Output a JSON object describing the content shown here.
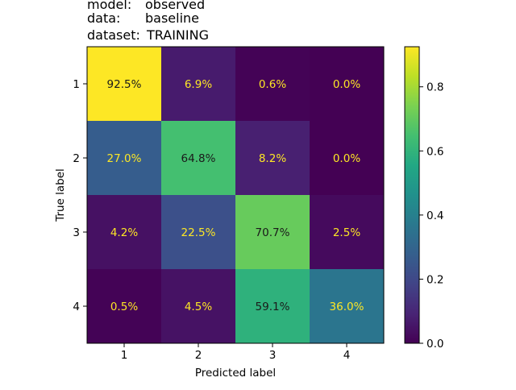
{
  "chart_data": {
    "type": "heatmap",
    "title_lines": [
      {
        "key": "model:",
        "value": "observed"
      },
      {
        "key": "data:",
        "value": "baseline"
      },
      {
        "key": "dataset:",
        "value": "TRAINING"
      }
    ],
    "xlabel": "Predicted label",
    "ylabel": "True label",
    "x_categories": [
      "1",
      "2",
      "3",
      "4"
    ],
    "y_categories": [
      "1",
      "2",
      "3",
      "4"
    ],
    "values": [
      [
        0.925,
        0.069,
        0.006,
        0.0
      ],
      [
        0.27,
        0.648,
        0.082,
        0.0
      ],
      [
        0.042,
        0.225,
        0.707,
        0.025
      ],
      [
        0.005,
        0.045,
        0.591,
        0.36
      ]
    ],
    "cell_labels": [
      [
        "92.5%",
        "6.9%",
        "0.6%",
        "0.0%"
      ],
      [
        "27.0%",
        "64.8%",
        "8.2%",
        "0.0%"
      ],
      [
        "4.2%",
        "22.5%",
        "70.7%",
        "2.5%"
      ],
      [
        "0.5%",
        "4.5%",
        "59.1%",
        "36.0%"
      ]
    ],
    "colormap": "viridis",
    "color_range": [
      0.0,
      0.925
    ],
    "colorbar_ticks": [
      {
        "value": 0.0,
        "label": "0.0"
      },
      {
        "value": 0.2,
        "label": "0.2"
      },
      {
        "value": 0.4,
        "label": "0.4"
      },
      {
        "value": 0.6,
        "label": "0.6"
      },
      {
        "value": 0.8,
        "label": "0.8"
      }
    ],
    "label_colors": {
      "light": "#fde725",
      "dark": "#1a1a1a"
    },
    "grid": false
  }
}
